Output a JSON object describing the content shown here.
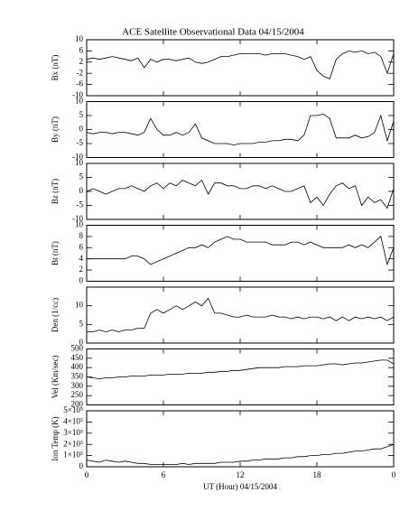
{
  "title": "ACE Satellite Observational Data   04/15/2004",
  "xlabel": "UT (Hour)   04/15/2004",
  "chart_data": [
    {
      "type": "line",
      "ylabel": "Bx (nT)",
      "xlim": [
        0,
        24
      ],
      "xticks": [
        0,
        6,
        12,
        18,
        {
          "value": 24,
          "label": "0"
        }
      ],
      "ylim": [
        -10,
        10
      ],
      "yticks": [
        -10,
        -6,
        -2,
        2,
        6,
        10
      ],
      "color": "#000000",
      "x": [
        0,
        0.5,
        1,
        1.5,
        2,
        2.5,
        3,
        3.5,
        4,
        4.5,
        5,
        5.5,
        6,
        6.5,
        7,
        7.5,
        8,
        8.5,
        9,
        9.5,
        10,
        10.5,
        11,
        11.5,
        12,
        12.5,
        13,
        13.5,
        14,
        14.5,
        15,
        15.5,
        16,
        16.5,
        17,
        17.5,
        18,
        18.5,
        19,
        19.5,
        20,
        20.5,
        21,
        21.5,
        22,
        22.5,
        23,
        23.5,
        24
      ],
      "values": [
        3,
        3.5,
        3,
        3.5,
        4,
        3.5,
        3,
        2.5,
        3.5,
        0,
        3,
        2,
        3,
        3,
        2.5,
        3,
        3.5,
        2,
        1.5,
        2,
        3,
        4,
        4,
        4.5,
        5,
        5,
        5,
        5,
        4.5,
        5,
        5,
        5,
        4.5,
        4,
        3,
        4,
        -1,
        -3,
        -4,
        3,
        5,
        6,
        5.5,
        6,
        5,
        5.5,
        4,
        -2,
        5
      ]
    },
    {
      "type": "line",
      "ylabel": "By (nT)",
      "xlim": [
        0,
        24
      ],
      "xticks": [
        0,
        6,
        12,
        18,
        {
          "value": 24,
          "label": "0"
        }
      ],
      "ylim": [
        -10,
        10
      ],
      "yticks": [
        -10,
        -5,
        0,
        5,
        10
      ],
      "color": "#000000",
      "x": [
        0,
        0.5,
        1,
        1.5,
        2,
        2.5,
        3,
        3.5,
        4,
        4.5,
        5,
        5.5,
        6,
        6.5,
        7,
        7.5,
        8,
        8.5,
        9,
        9.5,
        10,
        10.5,
        11,
        11.5,
        12,
        12.5,
        13,
        13.5,
        14,
        14.5,
        15,
        15.5,
        16,
        16.5,
        17,
        17.5,
        18,
        18.5,
        19,
        19.5,
        20,
        20.5,
        21,
        21.5,
        22,
        22.5,
        23,
        23.5,
        24
      ],
      "values": [
        -1,
        -1.5,
        -1,
        -1,
        -1.5,
        -1,
        -1,
        -1.5,
        -2,
        -1,
        4,
        0,
        -2,
        -2,
        -1,
        -2,
        -1,
        2,
        -3,
        -4,
        -5,
        -5,
        -5,
        -5.5,
        -5,
        -5,
        -5,
        -4.5,
        -4.5,
        -4,
        -4,
        -3.5,
        -3.5,
        -4,
        -2,
        5,
        5,
        5.5,
        4,
        -3,
        -3,
        -3,
        -2,
        -3,
        -2.5,
        -1,
        5,
        -4,
        3
      ]
    },
    {
      "type": "line",
      "ylabel": "Bz (nT)",
      "xlim": [
        0,
        24
      ],
      "xticks": [
        0,
        6,
        12,
        18,
        {
          "value": 24,
          "label": "0"
        }
      ],
      "ylim": [
        -10,
        10
      ],
      "yticks": [
        -10,
        -5,
        0,
        5,
        10
      ],
      "color": "#000000",
      "x": [
        0,
        0.5,
        1,
        1.5,
        2,
        2.5,
        3,
        3.5,
        4,
        4.5,
        5,
        5.5,
        6,
        6.5,
        7,
        7.5,
        8,
        8.5,
        9,
        9.5,
        10,
        10.5,
        11,
        11.5,
        12,
        12.5,
        13,
        13.5,
        14,
        14.5,
        15,
        15.5,
        16,
        16.5,
        17,
        17.5,
        18,
        18.5,
        19,
        19.5,
        20,
        20.5,
        21,
        21.5,
        22,
        22.5,
        23,
        23.5,
        24
      ],
      "values": [
        0,
        1,
        0,
        -1,
        0,
        1,
        1,
        2,
        1,
        0,
        2,
        3,
        1,
        3,
        2,
        4,
        3,
        2,
        4,
        -1,
        3,
        3,
        2,
        2,
        1,
        1,
        2,
        2,
        1,
        2,
        1,
        0,
        0,
        1,
        2,
        -4,
        -2,
        -5,
        -1,
        2,
        3,
        1,
        2,
        -5,
        -2,
        -4,
        -3,
        -6,
        1
      ]
    },
    {
      "type": "line",
      "ylabel": "Bt (nT)",
      "xlim": [
        0,
        24
      ],
      "xticks": [
        0,
        6,
        12,
        18,
        {
          "value": 24,
          "label": "0"
        }
      ],
      "ylim": [
        0,
        10
      ],
      "yticks": [
        0,
        2,
        4,
        6,
        8,
        10
      ],
      "color": "#000000",
      "x": [
        0,
        0.5,
        1,
        1.5,
        2,
        2.5,
        3,
        3.5,
        4,
        4.5,
        5,
        5.5,
        6,
        6.5,
        7,
        7.5,
        8,
        8.5,
        9,
        9.5,
        10,
        10.5,
        11,
        11.5,
        12,
        12.5,
        13,
        13.5,
        14,
        14.5,
        15,
        15.5,
        16,
        16.5,
        17,
        17.5,
        18,
        18.5,
        19,
        19.5,
        20,
        20.5,
        21,
        21.5,
        22,
        22.5,
        23,
        23.5,
        24
      ],
      "values": [
        4,
        4,
        4,
        4,
        4,
        4,
        4,
        4.5,
        4.5,
        4,
        3,
        3.5,
        4,
        4.5,
        5,
        5.5,
        6,
        6,
        6.5,
        6,
        7,
        7.5,
        8,
        7.5,
        7.5,
        7,
        7,
        7,
        7,
        6.5,
        6.5,
        6.5,
        7,
        7,
        6.5,
        7,
        6.5,
        6,
        6,
        6,
        6,
        6.5,
        6,
        6.5,
        6,
        7,
        8,
        3,
        6
      ]
    },
    {
      "type": "line",
      "ylabel": "Den (1/cc)",
      "xlim": [
        0,
        24
      ],
      "xticks": [
        0,
        6,
        12,
        18,
        {
          "value": 24,
          "label": "0"
        }
      ],
      "ylim": [
        0,
        15
      ],
      "yticks": [
        0,
        5,
        10
      ],
      "color": "#000000",
      "x": [
        0,
        0.5,
        1,
        1.5,
        2,
        2.5,
        3,
        3.5,
        4,
        4.5,
        5,
        5.5,
        6,
        6.5,
        7,
        7.5,
        8,
        8.5,
        9,
        9.5,
        10,
        10.5,
        11,
        11.5,
        12,
        12.5,
        13,
        13.5,
        14,
        14.5,
        15,
        15.5,
        16,
        16.5,
        17,
        17.5,
        18,
        18.5,
        19,
        19.5,
        20,
        20.5,
        21,
        21.5,
        22,
        22.5,
        23,
        23.5,
        24
      ],
      "values": [
        3,
        3,
        3.5,
        3,
        3.5,
        3,
        3.5,
        3.5,
        4,
        4,
        8,
        9,
        8,
        9,
        10,
        9,
        10,
        11,
        10,
        12,
        8,
        8,
        7.5,
        7,
        7,
        7.5,
        7,
        7,
        7,
        7.5,
        7,
        7,
        6.5,
        7,
        6.5,
        7,
        7,
        6.5,
        7,
        6,
        7,
        6,
        7,
        6.5,
        7,
        6.5,
        7,
        6,
        7
      ]
    },
    {
      "type": "line",
      "ylabel": "Vel (Km/sec)",
      "xlim": [
        0,
        24
      ],
      "xticks": [
        0,
        6,
        12,
        18,
        {
          "value": 24,
          "label": "0"
        }
      ],
      "ylim": [
        200,
        500
      ],
      "yticks": [
        200,
        250,
        300,
        350,
        400,
        450,
        500
      ],
      "color": "#000000",
      "x": [
        0,
        0.5,
        1,
        1.5,
        2,
        2.5,
        3,
        3.5,
        4,
        4.5,
        5,
        5.5,
        6,
        6.5,
        7,
        7.5,
        8,
        8.5,
        9,
        9.5,
        10,
        10.5,
        11,
        11.5,
        12,
        12.5,
        13,
        13.5,
        14,
        14.5,
        15,
        15.5,
        16,
        16.5,
        17,
        17.5,
        18,
        18.5,
        19,
        19.5,
        20,
        20.5,
        21,
        21.5,
        22,
        22.5,
        23,
        23.5,
        24
      ],
      "values": [
        350,
        345,
        340,
        345,
        345,
        350,
        350,
        355,
        355,
        355,
        360,
        360,
        360,
        365,
        365,
        365,
        370,
        370,
        370,
        375,
        375,
        380,
        380,
        385,
        385,
        390,
        395,
        400,
        400,
        400,
        400,
        405,
        405,
        405,
        410,
        410,
        410,
        415,
        420,
        420,
        415,
        420,
        425,
        425,
        430,
        435,
        440,
        440,
        420
      ]
    },
    {
      "type": "line",
      "ylabel": "Ion Temp (K)",
      "xlim": [
        0,
        24
      ],
      "xticks": [
        0,
        6,
        12,
        18,
        {
          "value": 24,
          "label": "0"
        }
      ],
      "ylim": [
        0,
        500000
      ],
      "yticks": [
        0,
        {
          "value": 100000,
          "label": "1×10⁵"
        },
        {
          "value": 200000,
          "label": "2×10⁵"
        },
        {
          "value": 300000,
          "label": "3×10⁵"
        },
        {
          "value": 400000,
          "label": "4×10⁵"
        },
        {
          "value": 500000,
          "label": "5×10⁵"
        }
      ],
      "color": "#000000",
      "x": [
        0,
        0.5,
        1,
        1.5,
        2,
        2.5,
        3,
        3.5,
        4,
        4.5,
        5,
        5.5,
        6,
        6.5,
        7,
        7.5,
        8,
        8.5,
        9,
        9.5,
        10,
        10.5,
        11,
        11.5,
        12,
        12.5,
        13,
        13.5,
        14,
        14.5,
        15,
        15.5,
        16,
        16.5,
        17,
        17.5,
        18,
        18.5,
        19,
        19.5,
        20,
        20.5,
        21,
        21.5,
        22,
        22.5,
        23,
        23.5,
        24
      ],
      "values": [
        60000,
        50000,
        40000,
        60000,
        50000,
        40000,
        50000,
        40000,
        30000,
        30000,
        20000,
        20000,
        20000,
        20000,
        20000,
        30000,
        20000,
        30000,
        30000,
        30000,
        30000,
        40000,
        40000,
        40000,
        50000,
        50000,
        60000,
        60000,
        70000,
        70000,
        70000,
        80000,
        80000,
        90000,
        90000,
        100000,
        100000,
        110000,
        110000,
        120000,
        120000,
        130000,
        140000,
        140000,
        150000,
        160000,
        160000,
        180000,
        200000
      ]
    }
  ]
}
